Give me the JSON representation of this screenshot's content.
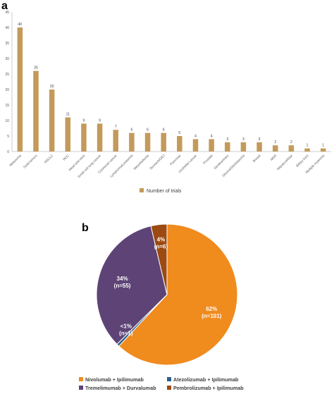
{
  "panel_a_label": "a",
  "panel_b_label": "b",
  "colors": {
    "bar": "#c49a5a",
    "axis": "#bfbfbf",
    "grid": "#e6e6e6",
    "tick_text": "#595959"
  },
  "chart_data": [
    {
      "type": "bar",
      "title": "",
      "xlabel": "",
      "ylabel": "",
      "ylim": [
        0,
        45
      ],
      "yticks": [
        0,
        5,
        10,
        15,
        20,
        25,
        30,
        35,
        40,
        45
      ],
      "grid": false,
      "legend_position": "bottom-center",
      "categories": [
        "Melanoma",
        "Solid tumors",
        "NSCLC",
        "RCC",
        "Head and neck",
        "Small cell lung cancer",
        "Colorectal cancer",
        "Lymphoma/Leukemia",
        "Mesothelioma",
        "Stomach/GEJ",
        "Pancreas",
        "Urothelial cancer",
        "Prostate",
        "Genitourinary",
        "Glioma/Glioblastoma",
        "Breast",
        "MDS",
        "Hepatocellular",
        "Biliary tract",
        "Multiple myeloma"
      ],
      "series": [
        {
          "name": "Number of trials",
          "color": "#c49a5a",
          "values": [
            40,
            26,
            20,
            11,
            9,
            9,
            7,
            6,
            6,
            6,
            5,
            4,
            4,
            3,
            3,
            3,
            2,
            2,
            1,
            1
          ],
          "value_labels": [
            "40",
            "26",
            "20",
            "11",
            "9",
            "9",
            "7",
            "6",
            "6",
            "6",
            "5",
            "4",
            "4",
            "3",
            "3",
            "3",
            "2",
            "2",
            "1",
            "1"
          ]
        }
      ]
    },
    {
      "type": "pie",
      "title": "",
      "legend_position": "bottom",
      "slices": [
        {
          "name": "Nivolumab + Ipilimumab",
          "value": 101,
          "percent_label": "62%",
          "count_label": "(n=101)",
          "color": "#f08b1e"
        },
        {
          "name": "Atezolizumab + Ipilimumab",
          "value": 1,
          "percent_label": "<1%",
          "count_label": "(n=1)",
          "color": "#2e5f8a"
        },
        {
          "name": "Tremelimumab + Durvalumab",
          "value": 55,
          "percent_label": "34%",
          "count_label": "(n=55)",
          "color": "#5e4476"
        },
        {
          "name": "Pembrolizumab + Ipilimumab",
          "value": 6,
          "percent_label": "4%",
          "count_label": "(n=6)",
          "color": "#9c4a12"
        }
      ]
    }
  ]
}
